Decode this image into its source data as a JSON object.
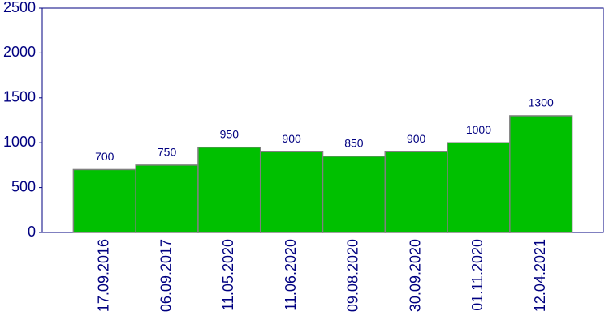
{
  "chart_data": {
    "type": "bar",
    "categories": [
      "17.09.2016",
      "06.09.2017",
      "11.05.2020",
      "11.06.2020",
      "09.08.2020",
      "30.09.2020",
      "01.11.2020",
      "12.04.2021"
    ],
    "values": [
      700,
      750,
      950,
      900,
      850,
      900,
      1000,
      1300
    ],
    "color": "#00c000",
    "ylim": [
      0,
      2500
    ],
    "yticks": [
      0,
      500,
      1000,
      1500,
      2000,
      2500
    ],
    "grid": false
  }
}
